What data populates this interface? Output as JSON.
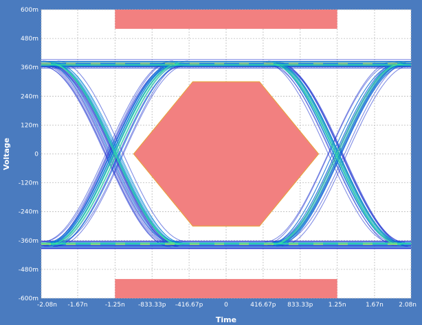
{
  "chart_data": {
    "type": "eye-diagram",
    "title": "",
    "xlabel": "Time",
    "ylabel": "Voltage",
    "xlim": [
      -2.08e-09,
      2.08e-09
    ],
    "ylim": [
      -0.6,
      0.6
    ],
    "grid": true,
    "x_ticks": [
      {
        "value": -2.08e-09,
        "label": "-2.08n"
      },
      {
        "value": -1.67e-09,
        "label": "-1.67n"
      },
      {
        "value": -1.25e-09,
        "label": "-1.25n"
      },
      {
        "value": -8.3333e-10,
        "label": "-833.33p"
      },
      {
        "value": -4.1667e-10,
        "label": "-416.67p"
      },
      {
        "value": 0,
        "label": "0"
      },
      {
        "value": 4.1667e-10,
        "label": "416.67p"
      },
      {
        "value": 8.3333e-10,
        "label": "833.33p"
      },
      {
        "value": 1.25e-09,
        "label": "1.25n"
      },
      {
        "value": 1.67e-09,
        "label": "1.67n"
      },
      {
        "value": 2.08e-09,
        "label": "2.08n"
      }
    ],
    "y_ticks": [
      {
        "value": 0.6,
        "label": "600m"
      },
      {
        "value": 0.48,
        "label": "480m"
      },
      {
        "value": 0.36,
        "label": "360m"
      },
      {
        "value": 0.24,
        "label": "240m"
      },
      {
        "value": 0.12,
        "label": "120m"
      },
      {
        "value": 0,
        "label": "0"
      },
      {
        "value": -0.12,
        "label": "-120m"
      },
      {
        "value": -0.24,
        "label": "-240m"
      },
      {
        "value": -0.36,
        "label": "-360m"
      },
      {
        "value": -0.48,
        "label": "-480m"
      },
      {
        "value": -0.6,
        "label": "-600m"
      }
    ],
    "signal": {
      "high_level": 0.375,
      "low_level": -0.375,
      "crossings": [
        -1.25e-09,
        1.25e-09
      ],
      "transition_width": 1.45e-09
    },
    "masks": {
      "upper": {
        "x": [
          -1.25e-09,
          1.25e-09
        ],
        "y": [
          0.52,
          0.6
        ]
      },
      "lower": {
        "x": [
          -1.25e-09,
          1.25e-09
        ],
        "y": [
          -0.6,
          -0.52
        ]
      },
      "center_polygon": [
        [
          -1.04e-09,
          0
        ],
        [
          -3.75e-10,
          0.3
        ],
        [
          3.75e-10,
          0.3
        ],
        [
          1.04e-09,
          0
        ],
        [
          3.75e-10,
          -0.3
        ],
        [
          -3.75e-10,
          -0.3
        ]
      ]
    },
    "colors": {
      "frame": "#4a7bbf",
      "plot_bg": "#ffffff",
      "grid": "#b8b8b8",
      "mask_fill": "#f28080",
      "mask_edge": "#e8a040",
      "trace_outer": "#1a2fcf",
      "trace_mid": "#0a86d8",
      "trace_hot": "#33e0a0",
      "trace_peak": "#e8f040"
    }
  }
}
